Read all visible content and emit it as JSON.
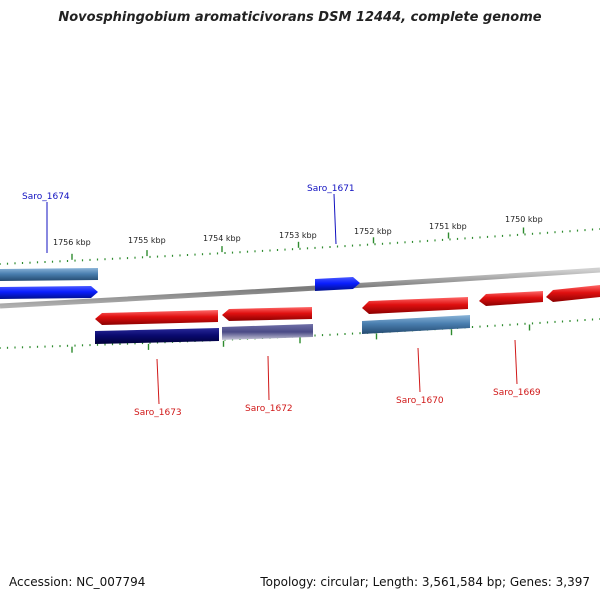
{
  "title": "Novosphingobium aromaticivorans DSM 12444, complete genome",
  "footer": {
    "accession": "Accession: NC_007794",
    "summary": "Topology: circular; Length: 3,561,584 bp; Genes: 3,397"
  },
  "colors": {
    "backbone": "#808080",
    "tick": "#2e8b2e",
    "plus_label": "#1010c0",
    "minus_label": "#d01818",
    "forward_gene": "#0a1eff",
    "reverse_gene": "#e01010",
    "cds_steel": "#4a7fb0",
    "dark_navy": "#0a0a70",
    "slate": "#5a5a90"
  },
  "scale": {
    "unit": "kbp",
    "labels": [
      {
        "kbp": 1756,
        "text": "1756 kbp"
      },
      {
        "kbp": 1755,
        "text": "1755 kbp"
      },
      {
        "kbp": 1754,
        "text": "1754 kbp"
      },
      {
        "kbp": 1753,
        "text": "1753 kbp"
      },
      {
        "kbp": 1752,
        "text": "1752 kbp"
      },
      {
        "kbp": 1751,
        "text": "1751 kbp"
      },
      {
        "kbp": 1750,
        "text": "1750 kbp"
      }
    ]
  },
  "genes": [
    {
      "name": "Saro_1674",
      "strand": "+",
      "color": "#0a1eff",
      "cds_color": "#4a7fb0"
    },
    {
      "name": "Saro_1671",
      "strand": "+",
      "color": "#0a1eff"
    },
    {
      "name": "Saro_1673",
      "strand": "-",
      "color": "#e01010",
      "cds_color": "#0a0a70"
    },
    {
      "name": "Saro_1672",
      "strand": "-",
      "color": "#e01010",
      "cds_color": "#5a5a90"
    },
    {
      "name": "Saro_1670",
      "strand": "-",
      "color": "#e01010",
      "cds_color": "#4a7fb0"
    },
    {
      "name": "Saro_1669",
      "strand": "-",
      "color": "#e01010"
    }
  ]
}
